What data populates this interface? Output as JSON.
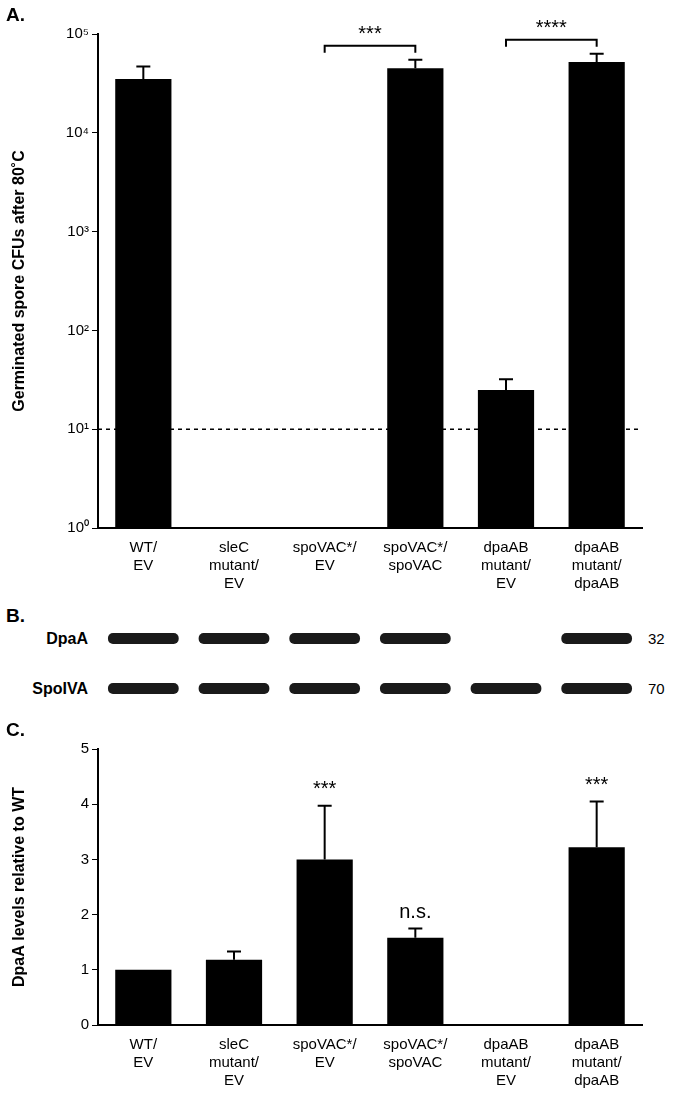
{
  "chart_data": [
    {
      "panel": "A.",
      "type": "bar",
      "log": "y",
      "y_label": "Germinated spore CFUs after 80˚C",
      "categories": [
        "WT/\nEV",
        "sleC\nmutant/\nEV",
        "spoVAC*/\nEV",
        "spoVAC*/\nspoVAC",
        "dpaAB\nmutant/\nEV",
        "dpaAB\nmutant/\ndpaAB"
      ],
      "values": [
        35000,
        null,
        null,
        45000,
        25,
        52000
      ],
      "errors": [
        12000,
        null,
        null,
        10000,
        7,
        11000
      ],
      "color": "#000000",
      "ylim": [
        1,
        100000
      ],
      "yticks": [
        {
          "value": 1,
          "label": "10⁰"
        },
        {
          "value": 10,
          "label": "10¹"
        },
        {
          "value": 100,
          "label": "10²"
        },
        {
          "value": 1000,
          "label": "10³"
        },
        {
          "value": 10000,
          "label": "10⁴"
        },
        {
          "value": 100000,
          "label": "10⁵"
        }
      ],
      "grid": false,
      "detection_limit": 10,
      "annotations": [
        {
          "text": "***",
          "from": 2,
          "to": 3
        },
        {
          "text": "****",
          "from": 4,
          "to": 5
        }
      ]
    },
    {
      "panel": "C.",
      "type": "bar",
      "y_label": "DpaA levels relative to WT",
      "categories": [
        "WT/\nEV",
        "sleC\nmutant/\nEV",
        "spoVAC*/\nEV",
        "spoVAC*/\nspoVAC",
        "dpaAB\nmutant/\nEV",
        "dpaAB\nmutant/\ndpaAB"
      ],
      "values": [
        1,
        1.18,
        3.0,
        1.58,
        0,
        3.22
      ],
      "errors": [
        null,
        0.15,
        0.97,
        0.17,
        null,
        0.83
      ],
      "color": "#000000",
      "ylim": [
        0,
        5
      ],
      "yticks": [
        0,
        1,
        2,
        3,
        4,
        5
      ],
      "grid": false,
      "annotations": [
        {
          "text": "***",
          "at": 2
        },
        {
          "text": "n.s.",
          "at": 3
        },
        {
          "text": "***",
          "at": 5
        }
      ]
    }
  ],
  "blot": {
    "panel": "B.",
    "rows": [
      {
        "label": "DpaA",
        "size": 32,
        "bands": [
          true,
          true,
          true,
          true,
          false,
          true
        ]
      },
      {
        "label": "SpoIVA",
        "size": 70,
        "bands": [
          true,
          true,
          true,
          true,
          true,
          true
        ]
      }
    ]
  }
}
